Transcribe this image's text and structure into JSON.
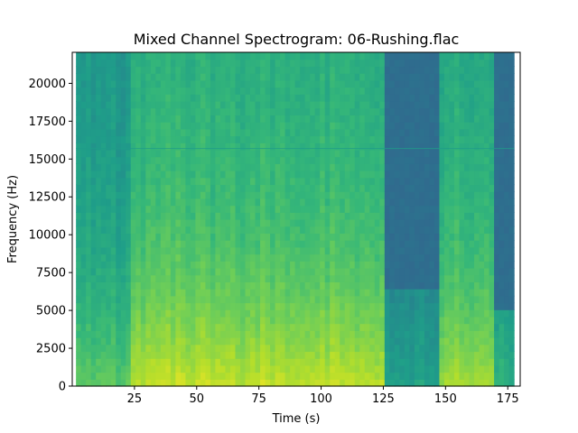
{
  "chart_data": {
    "type": "heatmap",
    "title": "Mixed Channel Spectrogram: 06-Rushing.flac",
    "xlabel": "Time (s)",
    "ylabel": "Frequency (Hz)",
    "xlim": [
      0,
      180
    ],
    "ylim": [
      0,
      22050
    ],
    "data_extent_x": [
      1.5,
      177.5
    ],
    "xticks": [
      25,
      50,
      75,
      100,
      125,
      150,
      175
    ],
    "yticks": [
      0,
      2500,
      5000,
      7500,
      10000,
      12500,
      15000,
      17500,
      20000
    ],
    "colormap": "viridis",
    "grid": false,
    "tonal_line_hz": 15700,
    "sections": [
      {
        "start": 1.5,
        "end": 23,
        "intensity": 0.55,
        "cutoff_hz": 22050,
        "note": "sparse percussive intro with vertical onsets"
      },
      {
        "start": 23,
        "end": 125,
        "intensity": 0.72,
        "cutoff_hz": 22050,
        "note": "full band"
      },
      {
        "start": 125,
        "end": 147,
        "intensity": 0.38,
        "cutoff_hz": 6000,
        "note": "quiet section, little high-frequency energy"
      },
      {
        "start": 147,
        "end": 170,
        "intensity": 0.68,
        "cutoff_hz": 22050,
        "note": "full band"
      },
      {
        "start": 170,
        "end": 177.5,
        "intensity": 0.45,
        "cutoff_hz": 5000,
        "note": "fade out"
      }
    ]
  }
}
